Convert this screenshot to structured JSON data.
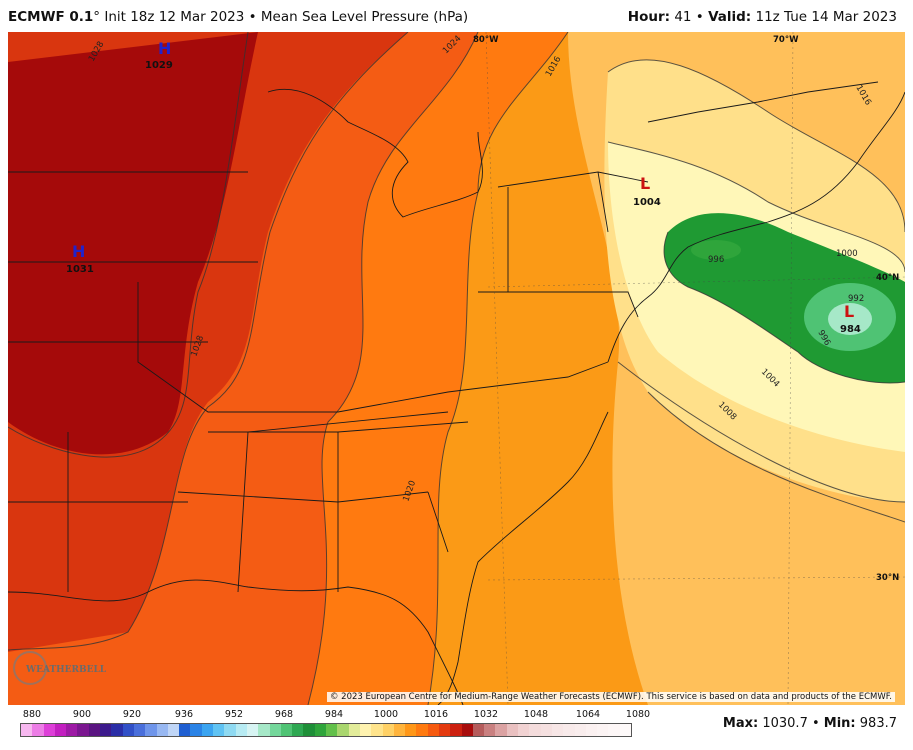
{
  "header": {
    "model": "ECMWF 0.1",
    "degree": "°",
    "init": " Init 18z 12 Mar 2023",
    "separator": " • ",
    "product": "Mean Sea Level Pressure (hPa)",
    "hour_label": "Hour:",
    "hour_value": " 41",
    "valid_label": "Valid:",
    "valid_value": " 11z Tue 14 Mar 2023"
  },
  "map": {
    "centers": [
      {
        "type": "H",
        "value": "1029",
        "color": "#2222cc"
      },
      {
        "type": "H",
        "value": "1031",
        "color": "#2222cc"
      },
      {
        "type": "L",
        "value": "1004",
        "color": "#cc1111"
      },
      {
        "type": "L",
        "value": "984",
        "color": "#cc1111"
      }
    ],
    "isobar_labels": [
      "1028",
      "1024",
      "1016",
      "1016",
      "1028",
      "1020",
      "1004",
      "1008",
      "996",
      "996",
      "992",
      "1000"
    ],
    "coordinate_labels": [
      "80°W",
      "70°W",
      "40°N",
      "30°N"
    ],
    "logo_text": "WEATHERBELL",
    "copyright": "© 2023 European Centre for Medium-Range Weather Forecasts (ECMWF). This service is based on data and products of the ECMWF."
  },
  "scale": {
    "labels": [
      "880",
      "900",
      "920",
      "936",
      "952",
      "968",
      "984",
      "1000",
      "1016",
      "1032",
      "1048",
      "1064",
      "1080"
    ],
    "colors": [
      "#f7b8f0",
      "#ec7de6",
      "#dd3fd8",
      "#c21fc0",
      "#9d1aa5",
      "#7b1690",
      "#5a1481",
      "#3c1a8c",
      "#2a2ea7",
      "#3150c7",
      "#4a6fdb",
      "#6f95ea",
      "#98b8f2",
      "#c0d6f7",
      "#1f5fd1",
      "#2a83e6",
      "#3ba4f0",
      "#60c3f3",
      "#8fdaf2",
      "#b7ebf3",
      "#d7f4f3",
      "#a6e8c8",
      "#74d79b",
      "#4fc374",
      "#2ea852",
      "#1e8f38",
      "#2fa53b",
      "#62c04a",
      "#a9d66e",
      "#e2ec9a",
      "#fff3b0",
      "#ffe48c",
      "#ffd166",
      "#ffb43c",
      "#ff9718",
      "#ff7a10",
      "#f65a10",
      "#e43a10",
      "#cc2010",
      "#a80d0d",
      "#b55c5c",
      "#c98080",
      "#dba2a2",
      "#e9c0c0",
      "#f1d2d2",
      "#f4dcdc",
      "#f5e0e0",
      "#f7e6e6",
      "#f8eaea",
      "#f9eded",
      "#fbf1f1",
      "#fcf4f4",
      "#fdf7f7",
      "#fefafa"
    ],
    "max_label": "Max:",
    "max_value": " 1030.7",
    "min_label": "Min:",
    "min_value": " 983.7"
  }
}
